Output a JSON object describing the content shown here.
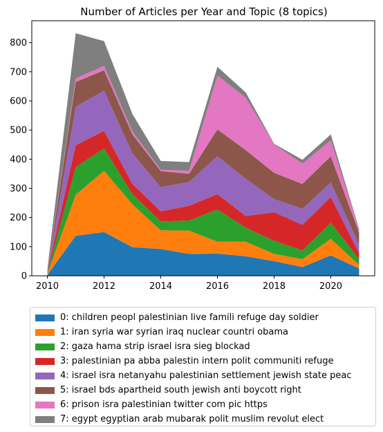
{
  "chart_data": {
    "type": "area",
    "stacked": true,
    "title": "Number of Articles per Year and Topic (8 topics)",
    "xlabel": "",
    "ylabel": "",
    "x": [
      2010,
      2011,
      2012,
      2013,
      2014,
      2015,
      2016,
      2017,
      2018,
      2019,
      2020,
      2021
    ],
    "xlim": [
      2009.45,
      2021.55
    ],
    "ylim": [
      0,
      875
    ],
    "xticks": [
      2010,
      2012,
      2014,
      2016,
      2018,
      2020
    ],
    "yticks": [
      0,
      100,
      200,
      300,
      400,
      500,
      600,
      700,
      800
    ],
    "grid": false,
    "legend_position": "below",
    "series": [
      {
        "name": "0: children peopl palestinian live famili refuge day soldier",
        "color": "#1f77b4",
        "values": [
          3,
          137,
          150,
          98,
          92,
          75,
          76,
          67,
          50,
          30,
          70,
          25
        ]
      },
      {
        "name": "1: iran syria war syrian iraq nuclear countri obama",
        "color": "#ff7f0e",
        "values": [
          3,
          141,
          210,
          147,
          64,
          80,
          41,
          50,
          25,
          27,
          57,
          12
        ]
      },
      {
        "name": "2: gaza hama strip israel isra sieg blockad",
        "color": "#2ca02c",
        "values": [
          3,
          95,
          77,
          35,
          30,
          35,
          110,
          48,
          45,
          30,
          55,
          20
        ]
      },
      {
        "name": "3: palestinian pa abba palestin intern polit communiti refuge",
        "color": "#d62728",
        "values": [
          3,
          75,
          60,
          35,
          35,
          50,
          53,
          40,
          98,
          88,
          88,
          20
        ]
      },
      {
        "name": "4: israel isra netanyahu palestinian settlement jewish state peac",
        "color": "#9467bd",
        "values": [
          3,
          132,
          138,
          105,
          83,
          82,
          130,
          128,
          45,
          55,
          50,
          30
        ]
      },
      {
        "name": "5: israel bds apartheid south jewish anti boycott right",
        "color": "#8c564b",
        "values": [
          3,
          85,
          70,
          65,
          55,
          28,
          92,
          98,
          90,
          85,
          90,
          40
        ]
      },
      {
        "name": "6: prison isra palestinian twitter com pic https",
        "color": "#e377c2",
        "values": [
          3,
          12,
          15,
          10,
          5,
          10,
          185,
          180,
          98,
          70,
          55,
          10
        ]
      },
      {
        "name": "7: egypt egyptian arab mubarak polit muslim revolut elect",
        "color": "#7f7f7f",
        "values": [
          3,
          155,
          85,
          60,
          30,
          30,
          30,
          18,
          2,
          13,
          20,
          3
        ]
      }
    ]
  }
}
